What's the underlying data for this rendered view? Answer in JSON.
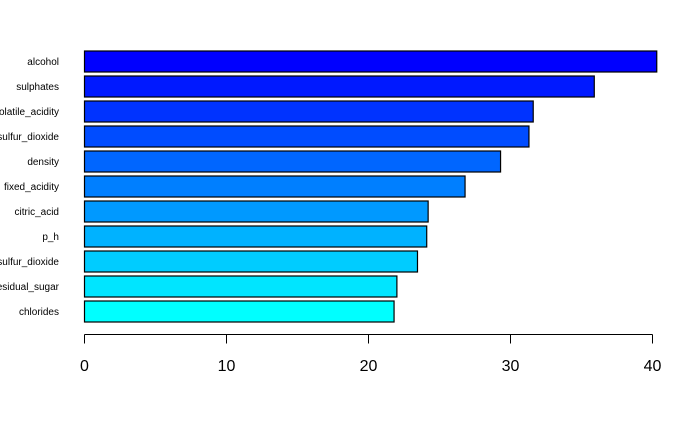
{
  "chart_data": {
    "type": "bar",
    "orientation": "horizontal",
    "title": "",
    "xlabel": "",
    "ylabel": "",
    "categories": [
      "alcohol",
      "sulphates",
      "volatile_acidity",
      "total_sulfur_dioxide",
      "density",
      "fixed_acidity",
      "citric_acid",
      "p_h",
      "free_sulfur_dioxide",
      "residual_sugar",
      "chlorides"
    ],
    "values": [
      40.3,
      35.9,
      31.6,
      31.3,
      29.3,
      26.8,
      24.2,
      24.1,
      23.45,
      22.0,
      21.8
    ],
    "xlim": [
      0,
      40
    ],
    "xticks": [
      0,
      10,
      20,
      30,
      40
    ],
    "grid": false,
    "colors": [
      "#0000FF",
      "#0019FF",
      "#0033FF",
      "#004CFF",
      "#0066FF",
      "#007FFF",
      "#0099FF",
      "#00B2FF",
      "#00CCFF",
      "#00E5FF",
      "#00FFFF"
    ]
  }
}
